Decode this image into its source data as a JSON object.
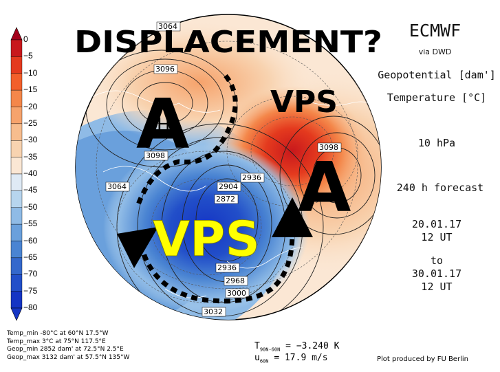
{
  "headline": "DISPLACEMENT?",
  "producer": "ECMWF",
  "via": "via DWD",
  "fields": [
    "Geopotential [dam']",
    "Temperature [°C]"
  ],
  "level": "10 hPa",
  "forecast": "240 h forecast",
  "init_date": "20.01.17",
  "init_time": "12 UT",
  "to_label": "to",
  "valid_date": "30.01.17",
  "valid_time": "12 UT",
  "colorbar_labels": [
    "0",
    "−5",
    "−10",
    "−15",
    "−20",
    "−25",
    "−30",
    "−35",
    "−40",
    "−45",
    "−50",
    "−55",
    "−60",
    "−65",
    "−70",
    "−75",
    "−80"
  ],
  "colorbar_colors": [
    "#a3001a",
    "#c8181c",
    "#e43a1e",
    "#f25f2b",
    "#f4874a",
    "#f6a36c",
    "#f7bd8e",
    "#f8d3b0",
    "#fbe7d4",
    "#dfeaf5",
    "#b7d5ee",
    "#8fbbe6",
    "#6aa0dc",
    "#4a84d2",
    "#3468cc",
    "#224fc9",
    "#1535c4"
  ],
  "contour_labels": [
    "3064",
    "3096",
    "3098",
    "3064",
    "3098",
    "2936",
    "2904",
    "2872",
    "2936",
    "2968",
    "3000",
    "3032"
  ],
  "annotations": {
    "high_left": "A",
    "high_right": "A",
    "vortex_upper": "VPS",
    "vortex_lower": "VPS",
    "h_mark": "H"
  },
  "stats": [
    "Temp_min  -80°C at 60°N 17.5°W",
    "Temp_max  3°C at 75°N 117.5°E",
    "Geop_min  2852 dam' at 72.5°N 2.5°E",
    "Geop_max  3132 dam' at 57.5°N 135°W"
  ],
  "mean_temp_label": "T",
  "mean_temp_sub": "90N-60N",
  "mean_temp_value": "= −3.240 K",
  "mean_wind_label": "u",
  "mean_wind_sub": "60N",
  "mean_wind_value": "= 17.9 m/s",
  "credit": "Plot produced by FU Berlin",
  "colors": {
    "vps_lower": "#ffff00",
    "black": "#000000"
  }
}
